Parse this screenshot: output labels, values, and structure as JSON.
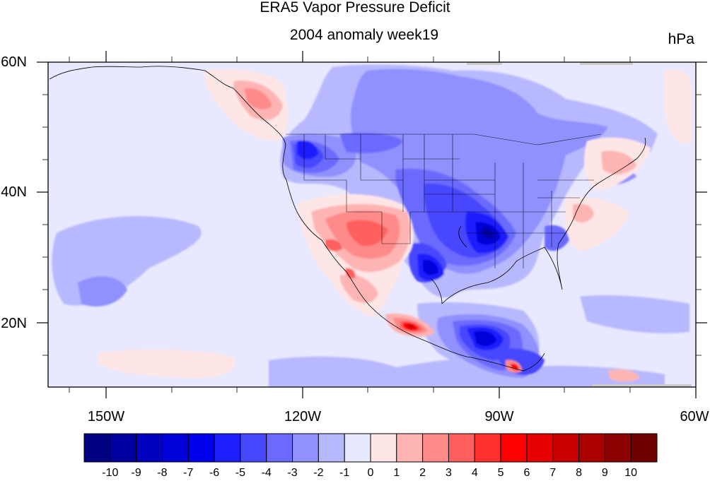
{
  "title": "ERA5 Vapor Pressure Deficit",
  "subtitle": "2004 anomaly week19",
  "units": "hPa",
  "map": {
    "lon_range": [
      -160,
      -60
    ],
    "lat_range": [
      10,
      60
    ],
    "lat_labels": [
      "60N",
      "40N",
      "20N"
    ],
    "lon_labels": [
      "150W",
      "120W",
      "90W",
      "60W"
    ],
    "background_color": "#e8e8fe"
  },
  "colorbar": {
    "labels": [
      "-10",
      "-9",
      "-8",
      "-7",
      "-6",
      "-5",
      "-4",
      "-3",
      "-2",
      "-1",
      "0",
      "1",
      "2",
      "3",
      "4",
      "5",
      "6",
      "7",
      "8",
      "9",
      "10"
    ],
    "colors": [
      "#000080",
      "#0000a0",
      "#0000bd",
      "#0000d8",
      "#0000f0",
      "#1e1eff",
      "#4646ff",
      "#6a6aff",
      "#9090ff",
      "#b8b8ff",
      "#e8e8fe",
      "#ffe6e6",
      "#ffb4b4",
      "#ff8a8a",
      "#ff5e5e",
      "#ff3030",
      "#ff0000",
      "#e60000",
      "#c80000",
      "#aa0000",
      "#8c0000",
      "#700000"
    ]
  }
}
